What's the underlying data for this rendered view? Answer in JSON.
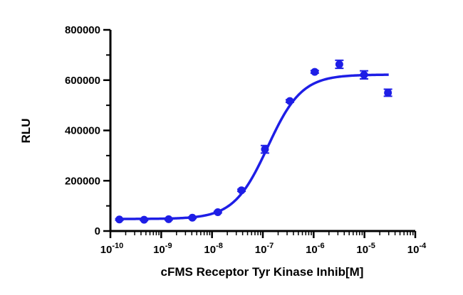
{
  "chart_data": {
    "type": "scatter",
    "xlabel": "cFMS Receptor Tyr Kinase Inhib[M]",
    "ylabel": "RLU",
    "x_scale": "log",
    "xlim": [
      1e-10,
      0.0001
    ],
    "ylim": [
      0,
      800000
    ],
    "x_tick_base": "10",
    "x_ticks": [
      {
        "value": 1e-10,
        "exp": "-10"
      },
      {
        "value": 1e-09,
        "exp": "-9"
      },
      {
        "value": 1e-08,
        "exp": "-8"
      },
      {
        "value": 1e-07,
        "exp": "-7"
      },
      {
        "value": 1e-06,
        "exp": "-6"
      },
      {
        "value": 1e-05,
        "exp": "-5"
      },
      {
        "value": 0.0001,
        "exp": "-4"
      }
    ],
    "y_ticks": [
      {
        "value": 0,
        "label": "0"
      },
      {
        "value": 200000,
        "label": "200000"
      },
      {
        "value": 400000,
        "label": "400000"
      },
      {
        "value": 600000,
        "label": "600000"
      },
      {
        "value": 800000,
        "label": "800000"
      }
    ],
    "points": [
      {
        "x": 1.5e-10,
        "y": 46000,
        "err": 3000
      },
      {
        "x": 4.6e-10,
        "y": 45000,
        "err": 3000
      },
      {
        "x": 1.4e-09,
        "y": 47000,
        "err": 3000
      },
      {
        "x": 4.1e-09,
        "y": 53000,
        "err": 3000
      },
      {
        "x": 1.3e-08,
        "y": 75000,
        "err": 3000
      },
      {
        "x": 3.8e-08,
        "y": 162000,
        "err": 4000
      },
      {
        "x": 1.1e-07,
        "y": 325000,
        "err": 15000
      },
      {
        "x": 3.4e-07,
        "y": 517000,
        "err": 5000
      },
      {
        "x": 1.05e-06,
        "y": 633000,
        "err": 5000
      },
      {
        "x": 3.2e-06,
        "y": 663000,
        "err": 16000
      },
      {
        "x": 9.8e-06,
        "y": 621000,
        "err": 16000
      },
      {
        "x": 2.9e-05,
        "y": 550000,
        "err": 14000
      }
    ],
    "fit": {
      "model": "4PL",
      "bottom": 48000,
      "top": 622000,
      "ec50": 1.25e-07,
      "hill": 1.3,
      "x_range": [
        1.5e-10,
        3e-05
      ]
    },
    "colors": {
      "series": "#1e1ee6",
      "axis": "#000000"
    }
  }
}
